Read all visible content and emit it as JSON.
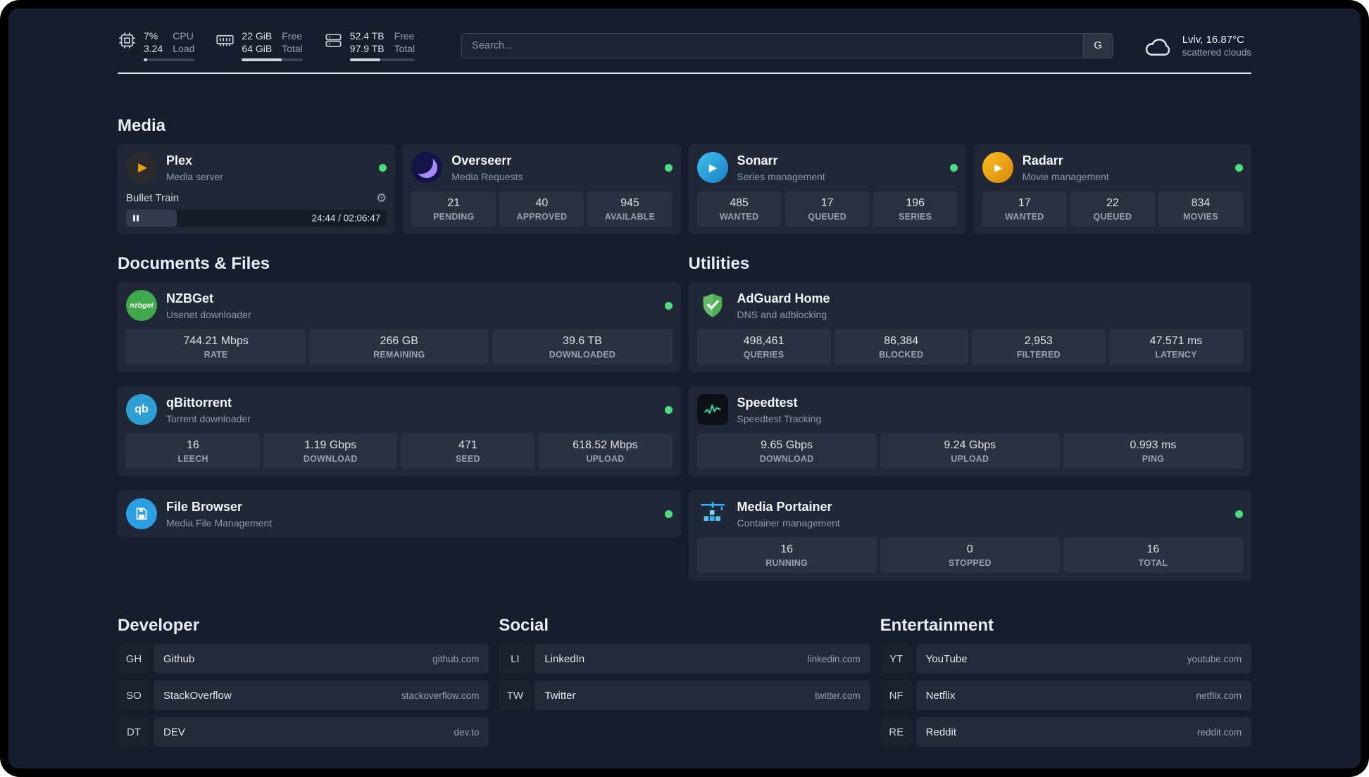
{
  "topbar": {
    "cpu": {
      "line1": "7%",
      "line2": "3.24",
      "label1": "CPU",
      "label2": "Load",
      "bar_pct": 7
    },
    "mem": {
      "line1": "22 GiB",
      "line2": "64 GiB",
      "label1": "Free",
      "label2": "Total",
      "bar_pct": 66
    },
    "disk": {
      "line1": "52.4 TB",
      "line2": "97.9 TB",
      "label1": "Free",
      "label2": "Total",
      "bar_pct": 46.5
    },
    "search": {
      "placeholder": "Search...",
      "provider": "G"
    },
    "weather": {
      "location": "Lviv, 16.87°C",
      "condition": "scattered clouds"
    }
  },
  "media": {
    "title": "Media",
    "plex": {
      "name": "Plex",
      "desc": "Media server",
      "now_playing": {
        "title": "Bullet Train",
        "time": "24:44 / 02:06:47",
        "progress_pct": 19.5
      }
    },
    "overseerr": {
      "name": "Overseerr",
      "desc": "Media Requests",
      "stats": [
        {
          "v": "21",
          "l": "PENDING"
        },
        {
          "v": "40",
          "l": "APPROVED"
        },
        {
          "v": "945",
          "l": "AVAILABLE"
        }
      ]
    },
    "sonarr": {
      "name": "Sonarr",
      "desc": "Series management",
      "stats": [
        {
          "v": "485",
          "l": "WANTED"
        },
        {
          "v": "17",
          "l": "QUEUED"
        },
        {
          "v": "196",
          "l": "SERIES"
        }
      ]
    },
    "radarr": {
      "name": "Radarr",
      "desc": "Movie management",
      "stats": [
        {
          "v": "17",
          "l": "WANTED"
        },
        {
          "v": "22",
          "l": "QUEUED"
        },
        {
          "v": "834",
          "l": "MOVIES"
        }
      ]
    }
  },
  "documents": {
    "title": "Documents & Files",
    "nzbget": {
      "name": "NZBGet",
      "desc": "Usenet downloader",
      "icon_text": "nzbget",
      "stats": [
        {
          "v": "744.21 Mbps",
          "l": "RATE"
        },
        {
          "v": "266 GB",
          "l": "REMAINING"
        },
        {
          "v": "39.6 TB",
          "l": "DOWNLOADED"
        }
      ]
    },
    "qbittorrent": {
      "name": "qBittorrent",
      "desc": "Torrent downloader",
      "icon_text": "qb",
      "stats": [
        {
          "v": "16",
          "l": "LEECH"
        },
        {
          "v": "1.19 Gbps",
          "l": "DOWNLOAD"
        },
        {
          "v": "471",
          "l": "SEED"
        },
        {
          "v": "618.52 Mbps",
          "l": "UPLOAD"
        }
      ]
    },
    "filebrowser": {
      "name": "File Browser",
      "desc": "Media File Management"
    }
  },
  "utilities": {
    "title": "Utilities",
    "adguard": {
      "name": "AdGuard Home",
      "desc": "DNS and adblocking",
      "stats": [
        {
          "v": "498,461",
          "l": "QUERIES"
        },
        {
          "v": "86,384",
          "l": "BLOCKED"
        },
        {
          "v": "2,953",
          "l": "FILTERED"
        },
        {
          "v": "47.571 ms",
          "l": "LATENCY"
        }
      ]
    },
    "speedtest": {
      "name": "Speedtest",
      "desc": "Speedtest Tracking",
      "stats": [
        {
          "v": "9.65 Gbps",
          "l": "DOWNLOAD"
        },
        {
          "v": "9.24 Gbps",
          "l": "UPLOAD"
        },
        {
          "v": "0.993 ms",
          "l": "PING"
        }
      ]
    },
    "portainer": {
      "name": "Media Portainer",
      "desc": "Container management",
      "stats": [
        {
          "v": "16",
          "l": "RUNNING"
        },
        {
          "v": "0",
          "l": "STOPPED"
        },
        {
          "v": "16",
          "l": "TOTAL"
        }
      ]
    }
  },
  "bookmarks": {
    "developer": {
      "title": "Developer",
      "items": [
        {
          "abbr": "GH",
          "name": "Github",
          "url": "github.com"
        },
        {
          "abbr": "SO",
          "name": "StackOverflow",
          "url": "stackoverflow.com"
        },
        {
          "abbr": "DT",
          "name": "DEV",
          "url": "dev.to"
        }
      ]
    },
    "social": {
      "title": "Social",
      "items": [
        {
          "abbr": "LI",
          "name": "LinkedIn",
          "url": "linkedin.com"
        },
        {
          "abbr": "TW",
          "name": "Twitter",
          "url": "twitter.com"
        }
      ]
    },
    "entertainment": {
      "title": "Entertainment",
      "items": [
        {
          "abbr": "YT",
          "name": "YouTube",
          "url": "youtube.com"
        },
        {
          "abbr": "NF",
          "name": "Netflix",
          "url": "netflix.com"
        },
        {
          "abbr": "RE",
          "name": "Reddit",
          "url": "reddit.com"
        }
      ]
    }
  }
}
